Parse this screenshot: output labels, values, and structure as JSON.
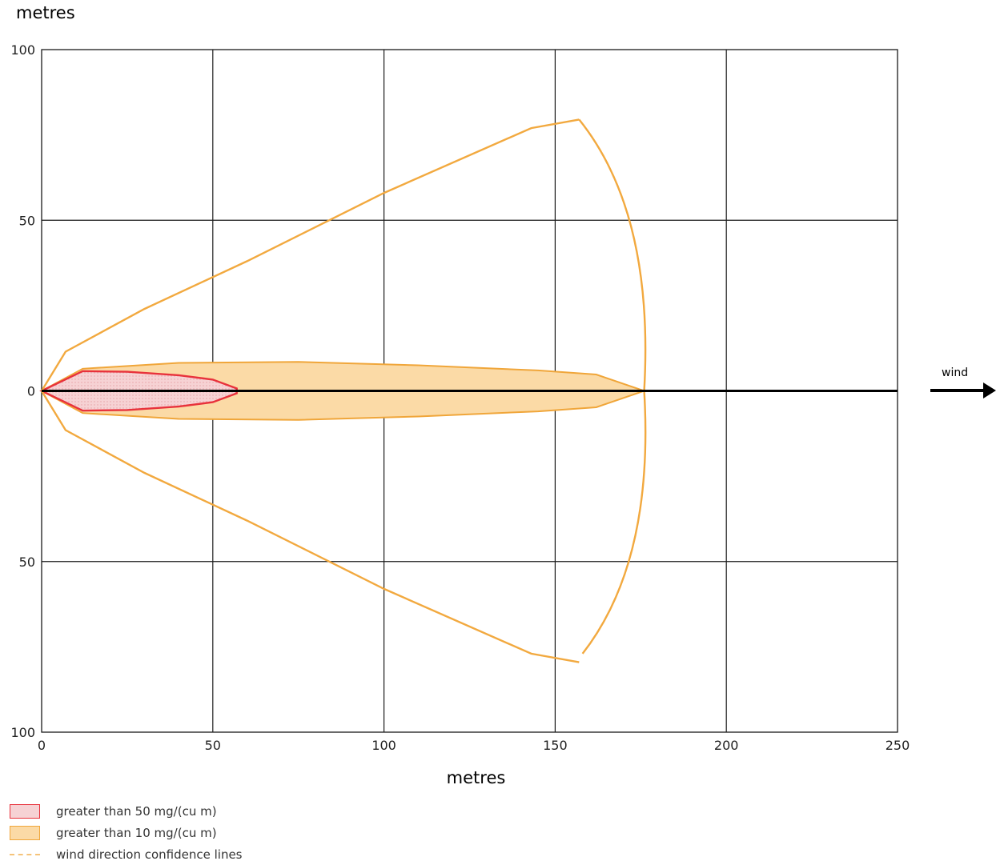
{
  "colors": {
    "grid": "#1a1a1a",
    "axis_center": "#000000",
    "red_stroke": "#e8323c",
    "red_fill": "#f6d2d4",
    "orange_stroke": "#f0a63a",
    "orange_fill": "#fbdaa6",
    "confidence": "#f2a93f"
  },
  "chart_data": {
    "type": "area",
    "xlabel": "metres",
    "ylabel": "metres",
    "xlim": [
      0,
      250
    ],
    "ylim": [
      -100,
      100
    ],
    "x_ticks": [
      "0",
      "50",
      "100",
      "150",
      "200",
      "250"
    ],
    "y_ticks": [
      "100",
      "50",
      "0",
      "50",
      "100"
    ],
    "grid": true,
    "annotation": "wind",
    "series": [
      {
        "name": "greater than 50 mg/(cu m)",
        "color": "#e8323c",
        "points": [
          [
            0,
            0
          ],
          [
            12,
            5.8
          ],
          [
            25,
            5.6
          ],
          [
            40,
            4.6
          ],
          [
            50,
            3.3
          ],
          [
            57,
            0.7
          ],
          [
            57,
            -0.7
          ],
          [
            50,
            -3.3
          ],
          [
            40,
            -4.6
          ],
          [
            25,
            -5.6
          ],
          [
            12,
            -5.8
          ],
          [
            0,
            0
          ]
        ]
      },
      {
        "name": "greater than 10 mg/(cu m)",
        "color": "#f0a63a",
        "points": [
          [
            0,
            0
          ],
          [
            12,
            6.5
          ],
          [
            40,
            8.2
          ],
          [
            75,
            8.5
          ],
          [
            110,
            7.5
          ],
          [
            145,
            6
          ],
          [
            162,
            4.8
          ],
          [
            176,
            0
          ],
          [
            162,
            -4.8
          ],
          [
            145,
            -6
          ],
          [
            110,
            -7.5
          ],
          [
            75,
            -8.5
          ],
          [
            40,
            -8.2
          ],
          [
            12,
            -6.5
          ],
          [
            0,
            0
          ]
        ]
      },
      {
        "name": "wind direction confidence lines",
        "color": "#f2a93f",
        "upper": [
          [
            0,
            0
          ],
          [
            7,
            11.5
          ],
          [
            30,
            24
          ],
          [
            60,
            38
          ],
          [
            100,
            58
          ],
          [
            143,
            77
          ],
          [
            157,
            79.5
          ]
        ],
        "lower": [
          [
            0,
            0
          ],
          [
            7,
            -11.5
          ],
          [
            30,
            -24
          ],
          [
            60,
            -38
          ],
          [
            100,
            -58
          ],
          [
            143,
            -77
          ],
          [
            157,
            -79.5
          ]
        ],
        "arc": [
          [
            157,
            79.5
          ],
          [
            170,
            50
          ],
          [
            176,
            0
          ],
          [
            170,
            -50
          ],
          [
            158,
            -77
          ]
        ]
      }
    ]
  },
  "legend": {
    "items": [
      {
        "label": "greater than 50 mg/(cu m)"
      },
      {
        "label": "greater than 10 mg/(cu m)"
      },
      {
        "label": "wind direction confidence lines"
      }
    ]
  }
}
